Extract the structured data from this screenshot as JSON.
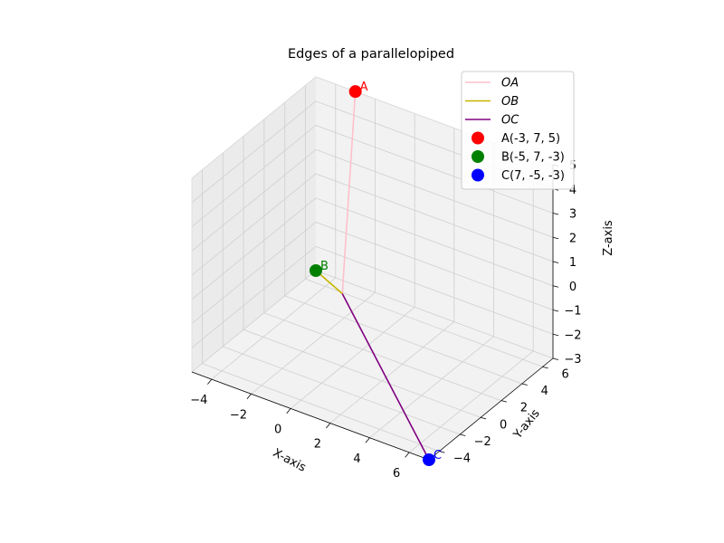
{
  "chart_data": {
    "type": "line",
    "title": "Edges of a parallelopiped",
    "xlabel": "X-axis",
    "ylabel": "Y-axis",
    "zlabel": "Z-axis",
    "xlim": [
      -5,
      7
    ],
    "ylim": [
      -5,
      7
    ],
    "zlim": [
      -3,
      5
    ],
    "xticks": [
      "−4",
      "−2",
      "0",
      "2",
      "4",
      "6"
    ],
    "yticks": [
      "−4",
      "−2",
      "0",
      "2",
      "4",
      "6"
    ],
    "zticks": [
      "−3",
      "−2",
      "−1",
      "0",
      "1",
      "2",
      "3",
      "4",
      "5"
    ],
    "grid": true,
    "legend_position": "top-right",
    "series": [
      {
        "name": "OA",
        "color": "#ffc0cb",
        "from": [
          0,
          0,
          0
        ],
        "to": [
          -3,
          7,
          5
        ]
      },
      {
        "name": "OB",
        "color": "#c8b400",
        "from": [
          0,
          0,
          0
        ],
        "to": [
          -5,
          7,
          -3
        ]
      },
      {
        "name": "OC",
        "color": "#800080",
        "from": [
          0,
          0,
          0
        ],
        "to": [
          7,
          -5,
          -3
        ]
      }
    ],
    "points": [
      {
        "label": "A",
        "legend": "A(-3, 7, 5)",
        "color": "#ff0000",
        "coords": [
          -3,
          7,
          5
        ]
      },
      {
        "label": "B",
        "legend": "B(-5, 7, -3)",
        "color": "#008000",
        "coords": [
          -5,
          7,
          -3
        ]
      },
      {
        "label": "C",
        "legend": "C(7, -5, -3)",
        "color": "#0000ff",
        "coords": [
          7,
          -5,
          -3
        ]
      }
    ]
  }
}
